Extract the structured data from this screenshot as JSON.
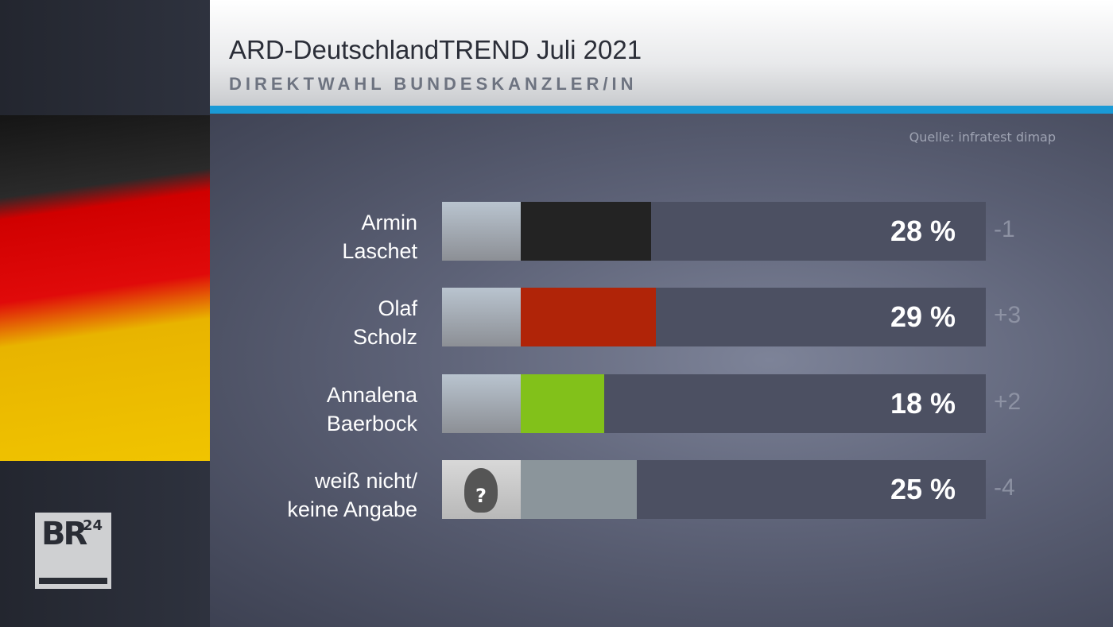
{
  "header": {
    "title": "ARD-DeutschlandTREND Juli 2021",
    "subtitle": "DIREKTWAHL BUNDESKANZLER/IN"
  },
  "source": "Quelle: infratest dimap",
  "logo": {
    "text": "BR",
    "number": "24"
  },
  "chart_data": {
    "type": "bar",
    "orientation": "horizontal",
    "title": "ARD-DeutschlandTREND Juli 2021 – Direktwahl Bundeskanzler/in",
    "xlim": [
      0,
      100
    ],
    "unit": "%",
    "categories": [
      [
        "Armin",
        "Laschet"
      ],
      [
        "Olaf",
        "Scholz"
      ],
      [
        "Annalena",
        "Baerbock"
      ],
      [
        "weiß nicht/",
        "keine Angabe"
      ]
    ],
    "values": [
      28,
      29,
      18,
      25
    ],
    "value_labels": [
      "28 %",
      "29 %",
      "18 %",
      "25 %"
    ],
    "changes": [
      "-1",
      "+3",
      "+2",
      "-4"
    ],
    "colors": [
      "#232323",
      "#b02408",
      "#82c11a",
      "#8b959b"
    ]
  }
}
